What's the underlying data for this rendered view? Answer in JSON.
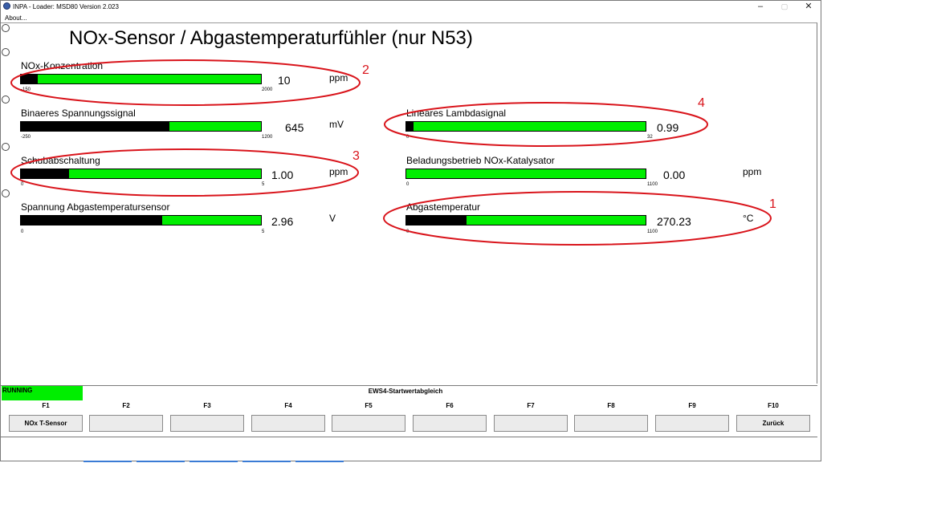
{
  "window": {
    "title": "INPA - Loader:  MSD80 Version 2.023",
    "menu": {
      "about": "About..."
    },
    "controls": {
      "minimize": "–",
      "maximize": "▢",
      "close": "✕"
    }
  },
  "page_title": "NOx-Sensor / Abgastemperaturfühler (nur N53)",
  "gauges": [
    {
      "label": "NOx-Konzentration",
      "min": "-150",
      "max": "2000",
      "value": "10",
      "unit": "ppm",
      "fill_fraction": 0.07
    },
    {
      "label": "Binaeres Spannungssignal",
      "min": "-250",
      "max": "1200",
      "value": "645",
      "unit": "mV",
      "fill_fraction": 0.62
    },
    {
      "label": "Schubabschaltung",
      "min": "0",
      "max": "5",
      "value": "1.00",
      "unit": "ppm",
      "fill_fraction": 0.2
    },
    {
      "label": "Spannung Abgastemperatursensor",
      "min": "0",
      "max": "5",
      "value": "2.96",
      "unit": "V",
      "fill_fraction": 0.59
    },
    {
      "label": "Lineares Lambdasignal",
      "min": "0",
      "max": "32",
      "value": "0.99",
      "unit": "",
      "fill_fraction": 0.03
    },
    {
      "label": "Beladungsbetrieb NOx-Katalysator",
      "min": "0",
      "max": "1100",
      "value": "0.00",
      "unit": "ppm",
      "fill_fraction": 0.0
    },
    {
      "label": "Abgastemperatur",
      "min": "0",
      "max": "1100",
      "value": "270.23",
      "unit": "°C",
      "fill_fraction": 0.25
    }
  ],
  "annotations": {
    "a1": "1",
    "a2": "2",
    "a3": "3",
    "a4": "4",
    "color": "#d9141b"
  },
  "status": {
    "state": "RUNNING",
    "function_title": "EWS4-Startwertabgleich"
  },
  "function_keys": [
    {
      "key": "F1",
      "label": "NOx T-Sensor"
    },
    {
      "key": "F2",
      "label": ""
    },
    {
      "key": "F3",
      "label": ""
    },
    {
      "key": "F4",
      "label": ""
    },
    {
      "key": "F5",
      "label": ""
    },
    {
      "key": "F6",
      "label": ""
    },
    {
      "key": "F7",
      "label": ""
    },
    {
      "key": "F8",
      "label": ""
    },
    {
      "key": "F9",
      "label": ""
    },
    {
      "key": "F10",
      "label": "Zurück"
    }
  ],
  "colors": {
    "bar_green": "#00ee00",
    "bar_fill": "#000000",
    "status_green": "#00ee00"
  }
}
